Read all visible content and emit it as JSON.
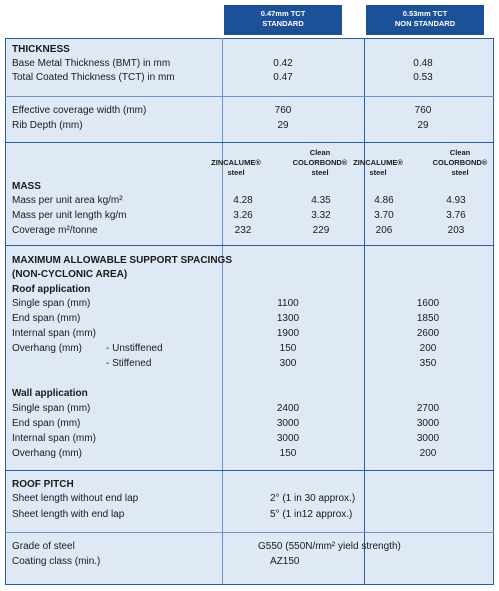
{
  "header": {
    "col1": [
      "0.47mm TCT",
      "STANDARD"
    ],
    "col2": [
      "0.53mm TCT",
      "NON STANDARD"
    ]
  },
  "thickness": {
    "title": "THICKNESS",
    "rows": [
      [
        "Base Metal Thickness (BMT) in mm",
        "0.42",
        "0.48"
      ],
      [
        "Total Coated Thickness (TCT) in mm",
        "0.47",
        "0.53"
      ],
      [
        "Effective coverage width (mm)",
        "760",
        "760"
      ],
      [
        "Rib Depth (mm)",
        "29",
        "29"
      ]
    ]
  },
  "mass": {
    "subheaders": [
      [
        "ZINCALUME®",
        "steel"
      ],
      [
        "Clean",
        "COLORBOND®",
        "steel"
      ],
      [
        "ZINCALUME®",
        "steel"
      ],
      [
        "Clean",
        "COLORBOND®",
        "steel"
      ]
    ],
    "title": "MASS",
    "rows": [
      [
        "Mass per unit area kg/m²",
        "4.28",
        "4.35",
        "4.86",
        "4.93"
      ],
      [
        "Mass per unit length kg/m",
        "3.26",
        "3.32",
        "3.70",
        "3.76"
      ],
      [
        "Coverage m²/tonne",
        "232",
        "229",
        "206",
        "203"
      ]
    ]
  },
  "spacings": {
    "title": [
      "MAXIMUM ALLOWABLE SUPPORT SPACINGS",
      "(NON-CYCLONIC AREA)"
    ],
    "roof": {
      "title": "Roof application",
      "rows": [
        [
          "Single span (mm)",
          "1100",
          "1600"
        ],
        [
          "End span (mm)",
          "1300",
          "1850"
        ],
        [
          "Internal span (mm)",
          "1900",
          "2600"
        ],
        [
          "Overhang (mm)",
          "- Unstiffened",
          "150",
          "200"
        ],
        [
          "- Stiffened",
          "300",
          "350"
        ]
      ]
    },
    "wall": {
      "title": "Wall application",
      "rows": [
        [
          "Single span (mm)",
          "2400",
          "2700"
        ],
        [
          "End span (mm)",
          "3000",
          "3000"
        ],
        [
          "Internal span (mm)",
          "3000",
          "3000"
        ],
        [
          "Overhang (mm)",
          "150",
          "200"
        ]
      ]
    }
  },
  "roof_pitch": {
    "title": "ROOF PITCH",
    "rows": [
      [
        "Sheet length without end lap",
        "2° (1 in 30 approx.)"
      ],
      [
        "Sheet length with end lap",
        "5° (1 in12 approx.)"
      ]
    ]
  },
  "steel": {
    "rows": [
      [
        "Grade of steel",
        "G550 (550N/mm² yield strength)"
      ],
      [
        "Coating class (min.)",
        "AZ150"
      ]
    ]
  }
}
